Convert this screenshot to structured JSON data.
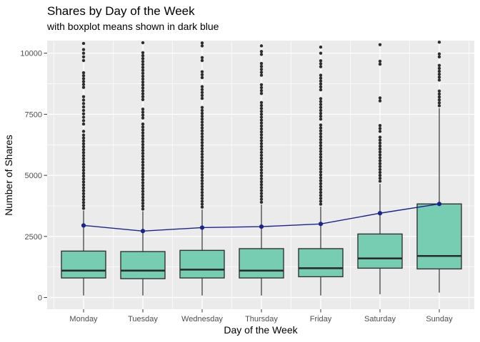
{
  "header": {
    "title": "Shares by Day of the Week",
    "subtitle": "with boxplot means shown in dark blue"
  },
  "chart_data": {
    "type": "boxplot",
    "title": "Shares by Day of the Week",
    "subtitle": "with boxplot means shown in dark blue",
    "xlabel": "Day of the Week",
    "ylabel": "Number of Shares",
    "categories": [
      "Monday",
      "Tuesday",
      "Wednesday",
      "Thursday",
      "Friday",
      "Saturday",
      "Sunday"
    ],
    "y_ticks": [
      0,
      2500,
      5000,
      7500,
      10000
    ],
    "y_minor_ticks": [
      1250,
      3750,
      6250,
      8750
    ],
    "ylim": [
      -480,
      10515
    ],
    "grid": "white major and minor gridlines on gray panel",
    "legend_position": "none",
    "boxes": [
      {
        "category": "Monday",
        "whisker_low": 80,
        "q1": 800,
        "median": 1100,
        "q3": 1900,
        "whisker_high": 3560,
        "outliers": [
          3650,
          3770,
          3890,
          4010,
          4130,
          4250,
          4370,
          4490,
          4610,
          4730,
          4850,
          4970,
          5090,
          5210,
          5330,
          5450,
          5570,
          5690,
          5810,
          5930,
          6050,
          6170,
          6290,
          6410,
          6530,
          6650,
          6800,
          7100,
          7240,
          7380,
          7520,
          7660,
          7800,
          7940,
          8080,
          8220,
          8600,
          8720,
          8840,
          8960,
          9080,
          9200,
          9700,
          9850,
          10000,
          10150,
          10400
        ]
      },
      {
        "category": "Tuesday",
        "whisker_low": 80,
        "q1": 770,
        "median": 1100,
        "q3": 1880,
        "whisker_high": 3530,
        "outliers": [
          3620,
          3740,
          3860,
          3980,
          4100,
          4220,
          4340,
          4460,
          4580,
          4700,
          4820,
          4940,
          5060,
          5180,
          5300,
          5420,
          5540,
          5660,
          5780,
          5900,
          6020,
          6140,
          6260,
          6380,
          6500,
          6620,
          6740,
          6860,
          6980,
          7100,
          7350,
          7470,
          7590,
          7710,
          8100,
          8220,
          8340,
          8460,
          8580,
          8700,
          8820,
          8940,
          9060,
          9180,
          9300,
          9420,
          9540,
          9660,
          9780,
          9900,
          10020,
          10430
        ]
      },
      {
        "category": "Wednesday",
        "whisker_low": 80,
        "q1": 800,
        "median": 1140,
        "q3": 1930,
        "whisker_high": 3600,
        "outliers": [
          3700,
          3820,
          3940,
          4060,
          4180,
          4300,
          4420,
          4540,
          4660,
          4780,
          4900,
          5020,
          5140,
          5260,
          5380,
          5500,
          5620,
          5740,
          5860,
          5980,
          6100,
          6220,
          6340,
          6460,
          6580,
          6700,
          6820,
          6940,
          7060,
          7180,
          7300,
          7420,
          7540,
          7660,
          7780,
          8150,
          8270,
          8390,
          8510,
          8630,
          9000,
          9120,
          9240,
          9700,
          9820,
          10300,
          10420
        ]
      },
      {
        "category": "Thursday",
        "whisker_low": 80,
        "q1": 800,
        "median": 1100,
        "q3": 2000,
        "whisker_high": 3810,
        "outliers": [
          3900,
          4020,
          4140,
          4260,
          4380,
          4500,
          4620,
          4740,
          4860,
          4980,
          5100,
          5220,
          5340,
          5460,
          5580,
          5700,
          5820,
          5940,
          6060,
          6180,
          6300,
          6420,
          6540,
          6660,
          6780,
          6900,
          7020,
          7140,
          7260,
          7380,
          7500,
          7620,
          7740,
          7860,
          7980,
          8350,
          8470,
          8590,
          8710,
          9100,
          9220,
          9340,
          9460,
          9580,
          9950,
          10070,
          10300
        ]
      },
      {
        "category": "Friday",
        "whisker_low": 80,
        "q1": 850,
        "median": 1200,
        "q3": 2000,
        "whisker_high": 3720,
        "outliers": [
          3820,
          3940,
          4060,
          4180,
          4300,
          4420,
          4540,
          4660,
          4780,
          4900,
          5020,
          5140,
          5260,
          5380,
          5500,
          5620,
          5740,
          5860,
          5980,
          6100,
          6220,
          6340,
          6460,
          6580,
          6700,
          6820,
          6940,
          7060,
          7300,
          7420,
          7540,
          7660,
          7780,
          7900,
          8020,
          8140,
          8500,
          8620,
          8740,
          8860,
          8980,
          9100,
          9450,
          9570,
          9690,
          10000,
          10250
        ]
      },
      {
        "category": "Saturday",
        "whisker_low": 130,
        "q1": 1200,
        "median": 1600,
        "q3": 2600,
        "whisker_high": 4650,
        "outliers": [
          4760,
          4880,
          5000,
          5120,
          5240,
          5360,
          5480,
          5600,
          5720,
          5840,
          5960,
          6080,
          6200,
          6320,
          6440,
          6560,
          6800,
          6920,
          7040,
          8050,
          8170,
          9550,
          9670,
          10350
        ]
      },
      {
        "category": "Sunday",
        "whisker_low": 200,
        "q1": 1170,
        "median": 1700,
        "q3": 3830,
        "whisker_high": 7750,
        "outliers": [
          7850,
          7970,
          8090,
          8210,
          8330,
          8450,
          8900,
          9020,
          9140,
          9260,
          9380,
          9500,
          9850,
          9970,
          10450
        ]
      }
    ],
    "series": [
      {
        "name": "boxplot means",
        "type": "line",
        "color": "#18258E",
        "values": [
          2950,
          2720,
          2860,
          2900,
          3010,
          3450,
          3830
        ]
      }
    ]
  },
  "style": {
    "panel_bg": "#EBEBEB",
    "grid_color": "#FFFFFF",
    "box_fill": "#76CDB2",
    "box_stroke": "#333333",
    "median_color": "#2B2B2B",
    "outlier_color": "#2E2E2E",
    "mean_color": "#18258E",
    "tick_color": "#333333",
    "tick_label_color": "#4D4D4D",
    "text_color": "#000000"
  }
}
